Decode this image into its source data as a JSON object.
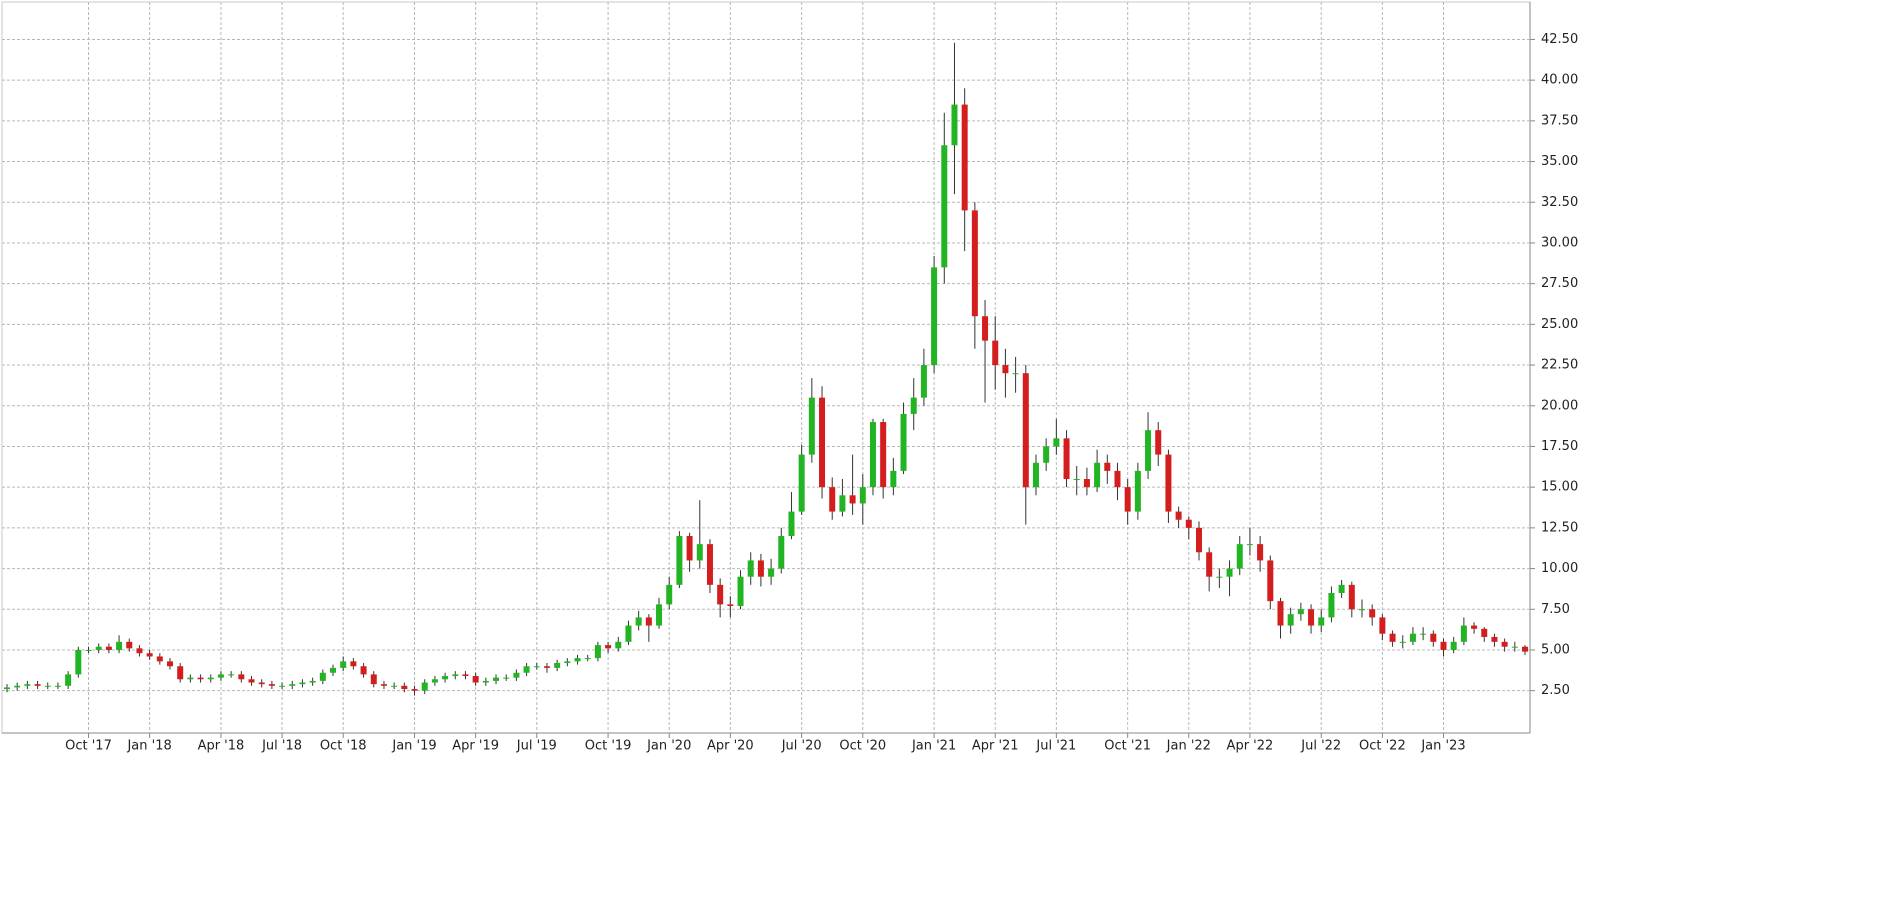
{
  "chart_data": {
    "type": "candlestick",
    "grid": true,
    "up_color": "#22b422",
    "down_color": "#d41e1e",
    "categories": [
      null,
      null,
      null,
      null,
      null,
      null,
      null,
      null,
      "Oct '17",
      null,
      null,
      null,
      null,
      null,
      "Jan '18",
      null,
      null,
      null,
      null,
      null,
      null,
      "Apr '18",
      null,
      null,
      null,
      null,
      null,
      "Jul '18",
      null,
      null,
      null,
      null,
      null,
      "Oct '18",
      null,
      null,
      null,
      null,
      null,
      null,
      "Jan '19",
      null,
      null,
      null,
      null,
      null,
      "Apr '19",
      null,
      null,
      null,
      null,
      null,
      "Jul '19",
      null,
      null,
      null,
      null,
      null,
      null,
      "Oct '19",
      null,
      null,
      null,
      null,
      null,
      "Jan '20",
      null,
      null,
      null,
      null,
      null,
      "Apr '20",
      null,
      null,
      null,
      null,
      null,
      null,
      "Jul '20",
      null,
      null,
      null,
      null,
      null,
      "Oct '20",
      null,
      null,
      null,
      null,
      null,
      null,
      "Jan '21",
      null,
      null,
      null,
      null,
      null,
      "Apr '21",
      null,
      null,
      null,
      null,
      null,
      "Jul '21",
      null,
      null,
      null,
      null,
      null,
      null,
      "Oct '21",
      null,
      null,
      null,
      null,
      null,
      "Jan '22",
      null,
      null,
      null,
      null,
      null,
      "Apr '22",
      null,
      null,
      null,
      null,
      null,
      null,
      "Jul '22",
      null,
      null,
      null,
      null,
      null,
      "Oct '22",
      null,
      null,
      null,
      null,
      null,
      "Jan '23",
      null,
      null,
      null,
      null,
      null,
      null,
      null,
      null
    ],
    "open": [
      2.6,
      2.7,
      2.8,
      2.9,
      2.8,
      2.8,
      2.8,
      3.5,
      5.0,
      5.0,
      5.2,
      5.0,
      5.5,
      5.1,
      4.8,
      4.6,
      4.3,
      4.0,
      3.2,
      3.3,
      3.2,
      3.3,
      3.5,
      3.5,
      3.2,
      3.0,
      2.9,
      2.8,
      2.8,
      2.9,
      3.0,
      3.1,
      3.6,
      3.9,
      4.3,
      4.0,
      3.5,
      2.9,
      2.8,
      2.8,
      2.6,
      2.5,
      3.0,
      3.2,
      3.4,
      3.5,
      3.4,
      3.0,
      3.1,
      3.3,
      3.3,
      3.6,
      4.0,
      4.0,
      3.9,
      4.2,
      4.3,
      4.5,
      4.5,
      5.3,
      5.1,
      5.5,
      6.5,
      7.0,
      6.5,
      7.8,
      9.0,
      12.0,
      10.5,
      11.5,
      9.0,
      7.8,
      7.7,
      9.5,
      10.5,
      9.5,
      10.0,
      12.0,
      13.5,
      17.0,
      20.5,
      15.0,
      13.5,
      14.5,
      14.0,
      15.0,
      19.0,
      15.0,
      16.0,
      19.5,
      20.5,
      22.5,
      28.5,
      36.0,
      38.5,
      32.0,
      25.5,
      24.0,
      22.5,
      22.0,
      22.0,
      15.0,
      16.5,
      17.5,
      18.0,
      15.5,
      15.5,
      15.0,
      16.5,
      16.0,
      15.0,
      13.5,
      16.0,
      18.5,
      17.0,
      13.5,
      13.0,
      12.5,
      11.0,
      9.5,
      9.5,
      10.0,
      11.5,
      11.5,
      10.5,
      8.0,
      6.5,
      7.2,
      7.5,
      6.5,
      7.0,
      8.5,
      9.0,
      7.5,
      7.5,
      7.0,
      6.0,
      5.5,
      5.5,
      6.0,
      6.0,
      5.5,
      5.0,
      5.5,
      6.5,
      6.3,
      5.8,
      5.5,
      5.2,
      5.2
    ],
    "high": [
      2.9,
      3.0,
      3.1,
      3.1,
      3.0,
      3.0,
      3.7,
      5.2,
      5.2,
      5.4,
      5.4,
      5.9,
      5.7,
      5.3,
      5.0,
      4.8,
      4.5,
      4.2,
      3.5,
      3.5,
      3.5,
      3.7,
      3.7,
      3.7,
      3.4,
      3.2,
      3.1,
      3.0,
      3.1,
      3.2,
      3.3,
      3.8,
      4.1,
      4.6,
      4.5,
      4.2,
      3.7,
      3.1,
      3.0,
      3.0,
      2.8,
      3.2,
      3.4,
      3.6,
      3.7,
      3.7,
      3.6,
      3.3,
      3.5,
      3.5,
      3.8,
      4.2,
      4.2,
      4.2,
      4.4,
      4.5,
      4.7,
      4.7,
      5.5,
      5.5,
      5.8,
      6.8,
      7.4,
      7.2,
      8.2,
      9.5,
      12.3,
      12.2,
      14.2,
      11.8,
      9.4,
      8.3,
      9.9,
      11.0,
      10.9,
      10.6,
      12.5,
      14.7,
      17.6,
      21.7,
      21.2,
      15.6,
      15.5,
      17.0,
      15.8,
      19.2,
      19.2,
      16.8,
      20.2,
      21.7,
      23.5,
      29.2,
      38.0,
      42.3,
      39.5,
      32.5,
      26.5,
      25.5,
      23.5,
      23.0,
      22.5,
      17.0,
      18.0,
      19.2,
      18.5,
      16.3,
      16.2,
      17.3,
      17.0,
      16.5,
      15.5,
      16.5,
      19.6,
      19.0,
      17.3,
      13.8,
      13.2,
      12.9,
      11.3,
      10.0,
      10.5,
      12.0,
      12.5,
      12.0,
      10.8,
      8.2,
      7.6,
      7.9,
      7.8,
      7.5,
      8.9,
      9.3,
      9.2,
      8.1,
      7.8,
      7.2,
      6.2,
      5.9,
      6.4,
      6.4,
      6.2,
      5.7,
      5.8,
      7.0,
      6.7,
      6.4,
      6.0,
      5.7,
      5.5,
      5.3
    ],
    "low": [
      2.4,
      2.5,
      2.6,
      2.6,
      2.6,
      2.6,
      2.6,
      3.3,
      4.8,
      4.8,
      4.8,
      4.8,
      4.9,
      4.6,
      4.4,
      4.1,
      3.8,
      3.0,
      3.0,
      3.0,
      3.0,
      3.1,
      3.3,
      3.0,
      2.8,
      2.7,
      2.6,
      2.6,
      2.6,
      2.7,
      2.8,
      2.9,
      3.4,
      3.7,
      3.8,
      3.3,
      2.7,
      2.6,
      2.6,
      2.4,
      2.2,
      2.3,
      2.8,
      3.0,
      3.2,
      3.2,
      2.8,
      2.8,
      2.9,
      3.1,
      3.1,
      3.4,
      3.8,
      3.6,
      3.7,
      4.0,
      4.1,
      4.3,
      4.3,
      4.8,
      4.9,
      5.3,
      6.2,
      5.5,
      6.3,
      7.5,
      8.8,
      9.8,
      10.0,
      8.5,
      7.0,
      7.0,
      7.5,
      9.0,
      8.9,
      9.0,
      9.7,
      11.8,
      13.3,
      16.5,
      14.3,
      13.0,
      13.2,
      13.3,
      12.7,
      14.5,
      14.3,
      14.5,
      15.8,
      18.5,
      20.0,
      22.0,
      27.5,
      33.0,
      29.5,
      23.5,
      20.2,
      21.0,
      20.5,
      20.8,
      12.7,
      14.5,
      16.0,
      17.0,
      15.0,
      14.5,
      14.5,
      14.7,
      15.2,
      14.2,
      12.7,
      13.0,
      15.5,
      16.3,
      12.8,
      12.5,
      11.8,
      10.5,
      8.6,
      8.8,
      8.3,
      9.6,
      10.8,
      9.8,
      7.5,
      5.7,
      6.0,
      6.8,
      6.0,
      6.1,
      6.7,
      8.2,
      7.0,
      7.0,
      6.5,
      5.6,
      5.2,
      5.1,
      5.3,
      5.6,
      5.2,
      4.6,
      4.8,
      5.3,
      6.0,
      5.5,
      5.2,
      4.9,
      4.9,
      4.7
    ],
    "close": [
      2.7,
      2.8,
      2.9,
      2.8,
      2.8,
      2.8,
      3.5,
      5.0,
      5.0,
      5.2,
      5.0,
      5.5,
      5.1,
      4.8,
      4.6,
      4.3,
      4.0,
      3.2,
      3.3,
      3.2,
      3.3,
      3.5,
      3.5,
      3.2,
      3.0,
      2.9,
      2.8,
      2.8,
      2.9,
      3.0,
      3.1,
      3.6,
      3.9,
      4.3,
      4.0,
      3.5,
      2.9,
      2.8,
      2.8,
      2.6,
      2.5,
      3.0,
      3.2,
      3.4,
      3.5,
      3.4,
      3.0,
      3.1,
      3.3,
      3.3,
      3.6,
      4.0,
      4.0,
      3.9,
      4.2,
      4.3,
      4.5,
      4.5,
      5.3,
      5.1,
      5.5,
      6.5,
      7.0,
      6.5,
      7.8,
      9.0,
      12.0,
      10.5,
      11.5,
      9.0,
      7.8,
      7.7,
      9.5,
      10.5,
      9.5,
      10.0,
      12.0,
      13.5,
      17.0,
      20.5,
      15.0,
      13.5,
      14.5,
      14.0,
      15.0,
      19.0,
      15.0,
      16.0,
      19.5,
      20.5,
      22.5,
      28.5,
      36.0,
      38.5,
      32.0,
      25.5,
      24.0,
      22.5,
      22.0,
      22.0,
      15.0,
      16.5,
      17.5,
      18.0,
      15.5,
      15.5,
      15.0,
      16.5,
      16.0,
      15.0,
      13.5,
      16.0,
      18.5,
      17.0,
      13.5,
      13.0,
      12.5,
      11.0,
      9.5,
      9.5,
      10.0,
      11.5,
      11.5,
      10.5,
      8.0,
      6.5,
      7.2,
      7.5,
      6.5,
      7.0,
      8.5,
      9.0,
      7.5,
      7.5,
      7.0,
      6.0,
      5.5,
      5.5,
      6.0,
      6.0,
      5.5,
      5.0,
      5.5,
      6.5,
      6.3,
      5.8,
      5.5,
      5.2,
      5.2,
      4.9
    ],
    "ylim": [
      -0.1,
      44.8
    ],
    "yticks": [
      {
        "value": 2.5,
        "label": "2.50"
      },
      {
        "value": 5,
        "label": "5.00"
      },
      {
        "value": 7.5,
        "label": "7.50"
      },
      {
        "value": 10,
        "label": "10.00"
      },
      {
        "value": 12.5,
        "label": "12.50"
      },
      {
        "value": 15,
        "label": "15.00"
      },
      {
        "value": 17.5,
        "label": "17.50"
      },
      {
        "value": 20,
        "label": "20.00"
      },
      {
        "value": 22.5,
        "label": "22.50"
      },
      {
        "value": 25,
        "label": "25.00"
      },
      {
        "value": 27.5,
        "label": "27.50"
      },
      {
        "value": 30,
        "label": "30.00"
      },
      {
        "value": 32.5,
        "label": "32.50"
      },
      {
        "value": 35,
        "label": "35.00"
      },
      {
        "value": 37.5,
        "label": "37.50"
      },
      {
        "value": 40,
        "label": "40.00"
      },
      {
        "value": 42.5,
        "label": "42.50"
      }
    ]
  }
}
